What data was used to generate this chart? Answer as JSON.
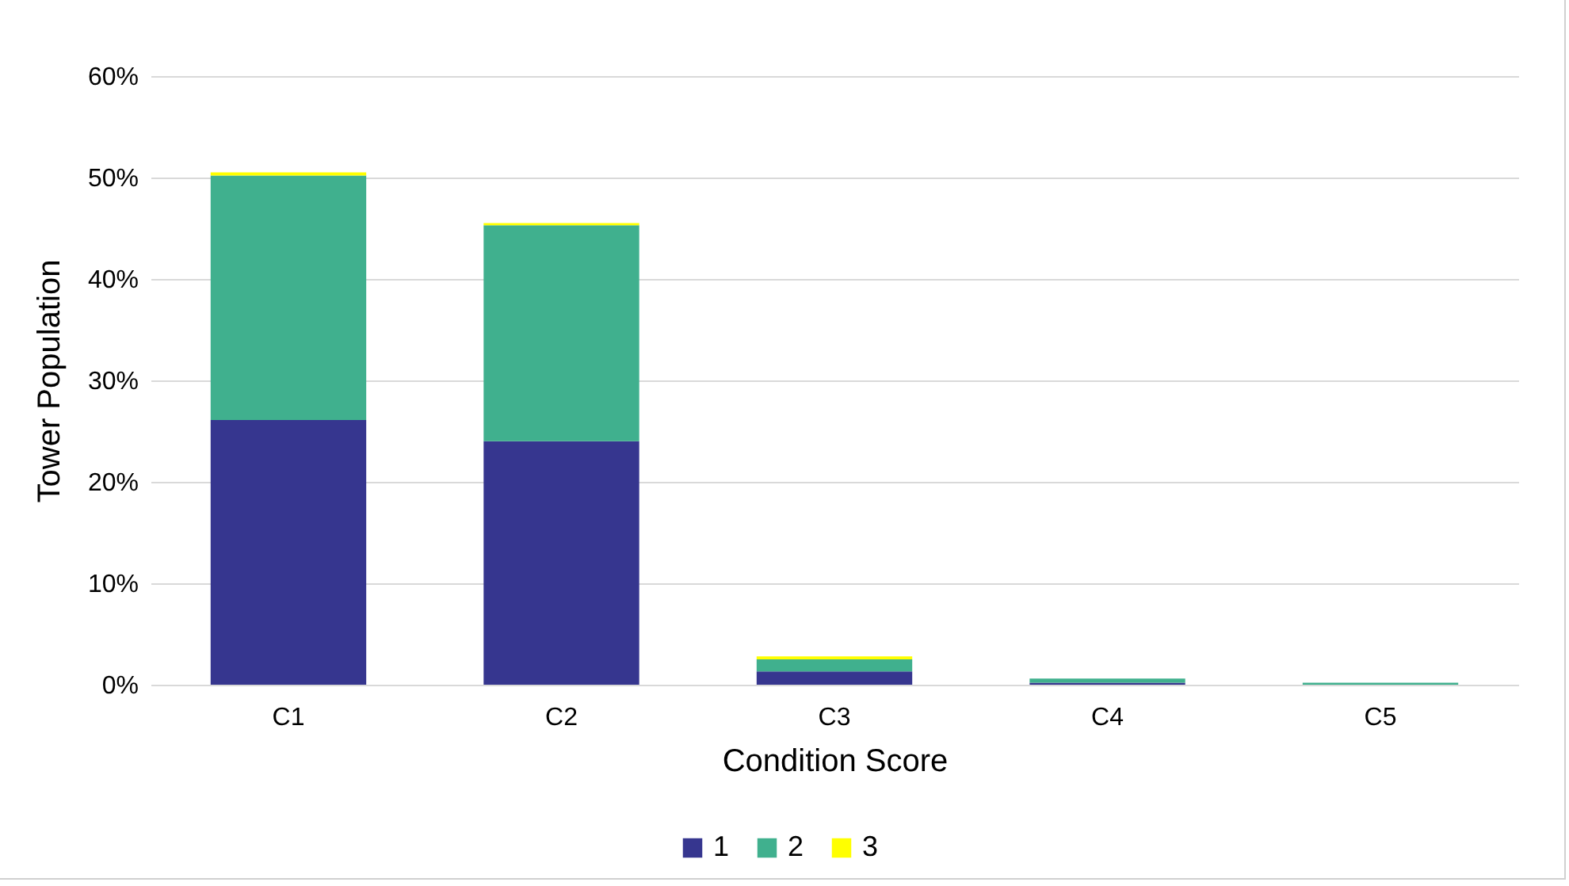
{
  "chart_data": {
    "type": "bar",
    "stacked": true,
    "xlabel": "Condition Score",
    "ylabel": "Tower Population",
    "categories": [
      "C1",
      "C2",
      "C3",
      "C4",
      "C5"
    ],
    "series": [
      {
        "name": "1",
        "color": "#36368f",
        "values": [
          26.1,
          24.0,
          1.3,
          0.2,
          null
        ]
      },
      {
        "name": "2",
        "color": "#40b08e",
        "values": [
          24.1,
          21.3,
          1.2,
          0.4,
          0.2
        ]
      },
      {
        "name": "3",
        "color": "#ffff00",
        "values": [
          0.3,
          0.2,
          0.3,
          null,
          null
        ]
      }
    ],
    "ylim": [
      0,
      60
    ],
    "yticks": [
      {
        "value": 0,
        "label": "0%"
      },
      {
        "value": 10,
        "label": "10%"
      },
      {
        "value": 20,
        "label": "20%"
      },
      {
        "value": 30,
        "label": "30%"
      },
      {
        "value": 40,
        "label": "40%"
      },
      {
        "value": 50,
        "label": "50%"
      },
      {
        "value": 60,
        "label": "60%"
      }
    ],
    "grid": "y",
    "legend": "bottom"
  }
}
